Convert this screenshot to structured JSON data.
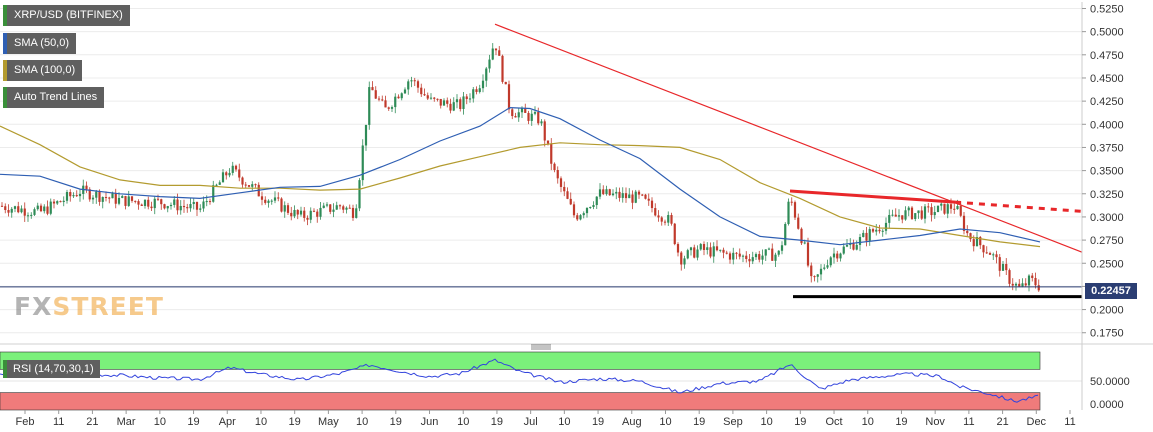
{
  "legend": {
    "symbol": "XRP/USD (BITFINEX)",
    "sma50": "SMA (50,0)",
    "sma100": "SMA (100,0)",
    "trend": "Auto Trend Lines"
  },
  "colors": {
    "up_candle": "#2e8b57",
    "down_candle": "#c0392b",
    "sma50": "#2f5fb3",
    "sma100": "#b39b2f",
    "trendline": "#e8272a",
    "support": "#000000",
    "current_price_line": "#2b3e73",
    "rsi_line": "#3344dd",
    "rsi_overbought_zone": "#7bf07b",
    "rsi_oversold_zone": "#f07b7b"
  },
  "current_price": "0.22457",
  "rsi_label": "RSI (14,70,30,1)",
  "watermark": {
    "part1": "FX",
    "part2": "STREET"
  },
  "chart_data": {
    "type": "candlestick",
    "price_axis": {
      "ticks": [
        "0.5250",
        "0.5000",
        "0.4750",
        "0.4500",
        "0.4250",
        "0.4000",
        "0.3750",
        "0.3500",
        "0.3250",
        "0.3000",
        "0.2750",
        "0.2500",
        "0.2250",
        "0.2000",
        "0.1750"
      ],
      "range": [
        0.165,
        0.532
      ]
    },
    "rsi_axis": {
      "ticks": [
        "50.0000",
        "0.0000"
      ],
      "range": [
        0,
        100
      ]
    },
    "x_axis": {
      "labels": [
        "Feb",
        "11",
        "21",
        "Mar",
        "10",
        "19",
        "Apr",
        "10",
        "19",
        "May",
        "10",
        "19",
        "Jun",
        "10",
        "19",
        "Jul",
        "10",
        "19",
        "Aug",
        "10",
        "19",
        "Sep",
        "10",
        "19",
        "Oct",
        "10",
        "19",
        "Nov",
        "11",
        "21",
        "Dec",
        "11"
      ]
    },
    "sma_50": [
      [
        0,
        0.346
      ],
      [
        40,
        0.344
      ],
      [
        80,
        0.33
      ],
      [
        120,
        0.325
      ],
      [
        160,
        0.322
      ],
      [
        200,
        0.32
      ],
      [
        240,
        0.326
      ],
      [
        280,
        0.332
      ],
      [
        320,
        0.333
      ],
      [
        360,
        0.345
      ],
      [
        400,
        0.362
      ],
      [
        440,
        0.382
      ],
      [
        480,
        0.398
      ],
      [
        510,
        0.418
      ],
      [
        530,
        0.417
      ],
      [
        560,
        0.406
      ],
      [
        600,
        0.383
      ],
      [
        640,
        0.363
      ],
      [
        680,
        0.33
      ],
      [
        720,
        0.3
      ],
      [
        760,
        0.279
      ],
      [
        800,
        0.275
      ],
      [
        840,
        0.27
      ],
      [
        880,
        0.275
      ],
      [
        920,
        0.28
      ],
      [
        960,
        0.287
      ],
      [
        1000,
        0.283
      ],
      [
        1040,
        0.273
      ]
    ],
    "sma_100": [
      [
        0,
        0.398
      ],
      [
        40,
        0.378
      ],
      [
        80,
        0.354
      ],
      [
        120,
        0.34
      ],
      [
        160,
        0.334
      ],
      [
        200,
        0.334
      ],
      [
        240,
        0.331
      ],
      [
        280,
        0.331
      ],
      [
        320,
        0.329
      ],
      [
        360,
        0.33
      ],
      [
        400,
        0.342
      ],
      [
        440,
        0.355
      ],
      [
        480,
        0.365
      ],
      [
        520,
        0.375
      ],
      [
        560,
        0.38
      ],
      [
        600,
        0.378
      ],
      [
        640,
        0.377
      ],
      [
        680,
        0.375
      ],
      [
        720,
        0.362
      ],
      [
        760,
        0.337
      ],
      [
        800,
        0.32
      ],
      [
        840,
        0.3
      ],
      [
        880,
        0.288
      ],
      [
        920,
        0.287
      ],
      [
        960,
        0.28
      ],
      [
        1000,
        0.273
      ],
      [
        1040,
        0.268
      ]
    ],
    "rsi": [
      [
        0,
        63
      ],
      [
        40,
        60
      ],
      [
        80,
        62
      ],
      [
        120,
        60
      ],
      [
        160,
        55
      ],
      [
        200,
        53
      ],
      [
        230,
        73
      ],
      [
        260,
        62
      ],
      [
        300,
        52
      ],
      [
        340,
        63
      ],
      [
        370,
        78
      ],
      [
        400,
        67
      ],
      [
        430,
        58
      ],
      [
        460,
        63
      ],
      [
        495,
        86
      ],
      [
        520,
        66
      ],
      [
        560,
        48
      ],
      [
        600,
        54
      ],
      [
        640,
        50
      ],
      [
        680,
        30
      ],
      [
        720,
        46
      ],
      [
        760,
        50
      ],
      [
        790,
        79
      ],
      [
        820,
        36
      ],
      [
        850,
        52
      ],
      [
        880,
        58
      ],
      [
        910,
        62
      ],
      [
        940,
        58
      ],
      [
        960,
        40
      ],
      [
        990,
        28
      ],
      [
        1015,
        15
      ],
      [
        1040,
        24
      ]
    ],
    "trendlines": [
      {
        "name": "descending",
        "from": [
          495,
          0.508
        ],
        "to": [
          1082,
          0.262
        ]
      },
      {
        "name": "upper",
        "from": [
          790,
          0.328
        ],
        "to": [
          955,
          0.316
        ]
      },
      {
        "name": "upper-extension",
        "from": [
          955,
          0.316
        ],
        "to": [
          1082,
          0.306
        ]
      },
      {
        "name": "support",
        "from": [
          793,
          0.214
        ],
        "to": [
          1082,
          0.214
        ]
      }
    ]
  }
}
